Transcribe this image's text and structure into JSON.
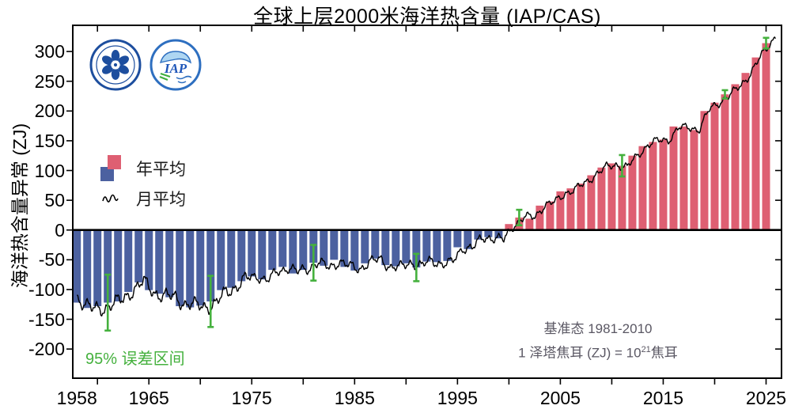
{
  "title": "全球上层2000米海洋热含量 (IAP/CAS)",
  "y_axis": {
    "label": "海洋热含量异常 (ZJ)"
  },
  "legend": {
    "annual_label": "年平均",
    "monthly_label": "月平均"
  },
  "logos": {
    "cas_logo_name": "中国科学院",
    "iap_logo_text": "IAP"
  },
  "annotations": {
    "error_note": "95% 误差区间",
    "baseline_note": "基准态  1981-2010",
    "unit_note_prefix": "1 泽塔焦耳 (ZJ) = 10",
    "unit_note_exponent": "21",
    "unit_note_suffix": "焦耳"
  },
  "colors": {
    "annual_positive": "#DE5F72",
    "annual_negative": "#4C61A0",
    "monthly_line": "#000000",
    "error_bar": "#45B13E",
    "note_gray": "#5A5763",
    "axis": "#000000"
  },
  "chart_data": {
    "type": "bar",
    "title": "全球上层2000米海洋热含量 (IAP/CAS)",
    "xlabel": "",
    "ylabel": "海洋热含量异常 (ZJ)",
    "baseline_period": "1981-2010",
    "unit": "ZJ (10^21 J)",
    "xlim": [
      1957.6,
      2026.5
    ],
    "ylim": [
      -249,
      344
    ],
    "grid": false,
    "legend_position": "upper-left-inside",
    "y_ticks": [
      300,
      250,
      200,
      150,
      100,
      50,
      0,
      -50,
      -100,
      -150,
      -200
    ],
    "x_minor_tick_years": [
      1960,
      1965,
      1970,
      1975,
      1980,
      1985,
      1990,
      1995,
      2000,
      2005,
      2010,
      2015,
      2020,
      2025
    ],
    "x_tick_labels": [
      {
        "year": 1958,
        "label": "1958"
      },
      {
        "year": 1965,
        "label": "1965"
      },
      {
        "year": 1975,
        "label": "1975"
      },
      {
        "year": 1985,
        "label": "1985"
      },
      {
        "year": 1995,
        "label": "1995"
      },
      {
        "year": 2005,
        "label": "2005"
      },
      {
        "year": 2015,
        "label": "2015"
      },
      {
        "year": 2025,
        "label": "2025"
      }
    ],
    "categories": [
      1958,
      1959,
      1960,
      1961,
      1962,
      1963,
      1964,
      1965,
      1966,
      1967,
      1968,
      1969,
      1970,
      1971,
      1972,
      1973,
      1974,
      1975,
      1976,
      1977,
      1978,
      1979,
      1980,
      1981,
      1982,
      1983,
      1984,
      1985,
      1986,
      1987,
      1988,
      1989,
      1990,
      1991,
      1992,
      1993,
      1994,
      1995,
      1996,
      1997,
      1998,
      1999,
      2000,
      2001,
      2002,
      2003,
      2004,
      2005,
      2006,
      2007,
      2008,
      2009,
      2010,
      2011,
      2012,
      2013,
      2014,
      2015,
      2016,
      2017,
      2018,
      2019,
      2020,
      2021,
      2022,
      2023,
      2024,
      2025
    ],
    "series": [
      {
        "name": "年平均",
        "type": "bar",
        "values": [
          -122,
          -131,
          -128,
          -122,
          -120,
          -104,
          -88,
          -101,
          -107,
          -113,
          -128,
          -130,
          -127,
          -120,
          -101,
          -97,
          -86,
          -78,
          -83,
          -67,
          -62,
          -73,
          -67,
          -55,
          -60,
          -50,
          -62,
          -68,
          -56,
          -48,
          -59,
          -61,
          -56,
          -63,
          -53,
          -54,
          -52,
          -29,
          -32,
          -16,
          -12,
          -14,
          10,
          21,
          19,
          41,
          48,
          65,
          70,
          78,
          92,
          105,
          112,
          108,
          125,
          141,
          148,
          152,
          174,
          174,
          168,
          200,
          214,
          228,
          245,
          264,
          290,
          314
        ]
      },
      {
        "name": "月平均",
        "type": "line",
        "description": "monthly mean anomaly, wiggles of roughly ±10-20 ZJ around the annual bars, 1958-2025",
        "wiggle_amplitude_zj": 14
      }
    ],
    "error_bars": {
      "label": "95% 误差区间",
      "years": [
        1961,
        1971,
        1981,
        1991,
        2001,
        2011,
        2021,
        2025
      ],
      "half_widths": [
        47,
        43,
        30,
        23,
        13,
        18,
        7,
        9
      ]
    }
  }
}
